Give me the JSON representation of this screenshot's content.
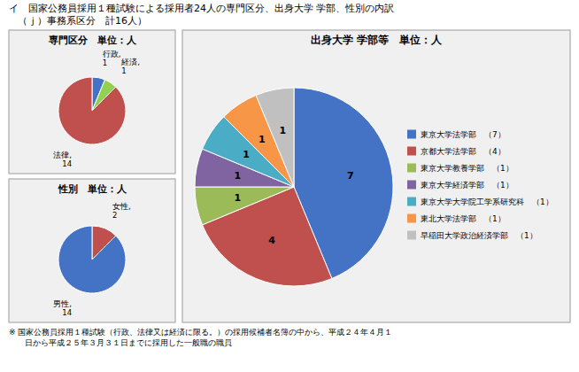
{
  "title": "イ　国家公務員採用１種試験による採用者24人の専門区分、出身大学 学部、性別の内訳",
  "subtitle": "（ｊ）事務系区分　計16人）",
  "annotations": [
    "※ 国家公務員採用１種試験（行政、法律又は経済に限る。）の採用候補者名簿の中から、平成２４年４月１\n　　日から平成２５年３月３１日までに採用した一般職の職員"
  ],
  "chart_data": [
    {
      "type": "pie",
      "title": "専門区分　単位：人",
      "categories": [
        "行政,\n1",
        "経済,\n1",
        "法律,\n14"
      ],
      "values": [
        1,
        1,
        14
      ],
      "colors": [
        "#4472C4",
        "#92D050",
        "#C0504D"
      ]
    },
    {
      "type": "pie",
      "title": "出身大学 学部等　単位：人",
      "categories": [
        "東京大学法学部　（7）",
        "京都大学法学部　（4）",
        "東京大学教養学部　（1）",
        "東京大学経済学部　（1）",
        "東京大学大学院工学系研究科　（1）",
        "東北大学法学部　（1）",
        "早稲田大学政治経済学部　（1）"
      ],
      "values": [
        7,
        4,
        1,
        1,
        1,
        1,
        1
      ],
      "colors": [
        "#4472C4",
        "#C0504D",
        "#9BBB59",
        "#8064A2",
        "#4BACC6",
        "#F79646",
        "#C0C0C0"
      ],
      "legend": "right",
      "data_labels": true
    },
    {
      "type": "pie",
      "title": "性別　単位：人",
      "categories": [
        "女性,\n2",
        "男性,\n14"
      ],
      "values": [
        2,
        14
      ],
      "colors": [
        "#C0504D",
        "#4472C4"
      ]
    }
  ]
}
